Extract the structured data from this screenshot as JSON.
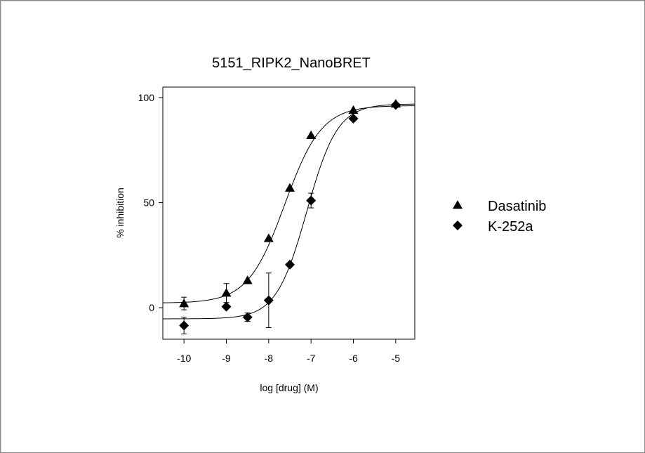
{
  "chart_data": {
    "type": "scatter",
    "title": "5151_RIPK2_NanoBRET",
    "xlabel": "log [drug]  (M)",
    "ylabel": "% inhibition",
    "xlim": [
      -10.5,
      -4.55
    ],
    "ylim": [
      -15,
      105
    ],
    "x_ticks": [
      {
        "value": -10,
        "label": "-10"
      },
      {
        "value": -9,
        "label": "-9"
      },
      {
        "value": -8,
        "label": "-8"
      },
      {
        "value": -7,
        "label": "-7"
      },
      {
        "value": -6,
        "label": "-6"
      },
      {
        "value": -5,
        "label": "-5"
      }
    ],
    "y_ticks": [
      {
        "value": 0,
        "label": "0"
      },
      {
        "value": 50,
        "label": "50"
      },
      {
        "value": 100,
        "label": "100"
      }
    ],
    "legend_position": "right",
    "grid": false,
    "series": [
      {
        "name": "Dasatinib",
        "marker": "triangle",
        "color": "#000000",
        "points": [
          {
            "x": -10,
            "y": 2,
            "err": 3
          },
          {
            "x": -9,
            "y": 7,
            "err": 4.5
          },
          {
            "x": -8.5,
            "y": 13,
            "err": 0
          },
          {
            "x": -8,
            "y": 33,
            "err": 0
          },
          {
            "x": -7.5,
            "y": 57,
            "err": 0
          },
          {
            "x": -7,
            "y": 82,
            "err": 0
          },
          {
            "x": -6,
            "y": 94,
            "err": 0
          },
          {
            "x": -5,
            "y": 97,
            "err": 0
          }
        ],
        "fit": {
          "bottom": 2.2,
          "top": 96.2,
          "log_ic50": -7.62,
          "hill": 1.0
        }
      },
      {
        "name": "K-252a",
        "marker": "diamond",
        "color": "#000000",
        "points": [
          {
            "x": -10,
            "y": -8.5,
            "err": 4
          },
          {
            "x": -9,
            "y": 0.5,
            "err": 0
          },
          {
            "x": -8.5,
            "y": -4.5,
            "err": 2
          },
          {
            "x": -8,
            "y": 3.5,
            "err": 13
          },
          {
            "x": -7.5,
            "y": 20.5,
            "err": 0
          },
          {
            "x": -7,
            "y": 51,
            "err": 3.5
          },
          {
            "x": -6,
            "y": 90,
            "err": 0
          },
          {
            "x": -5,
            "y": 96.5,
            "err": 0
          }
        ],
        "fit": {
          "bottom": -5.3,
          "top": 97,
          "log_ic50": -7.1,
          "hill": 1.2
        }
      }
    ]
  }
}
